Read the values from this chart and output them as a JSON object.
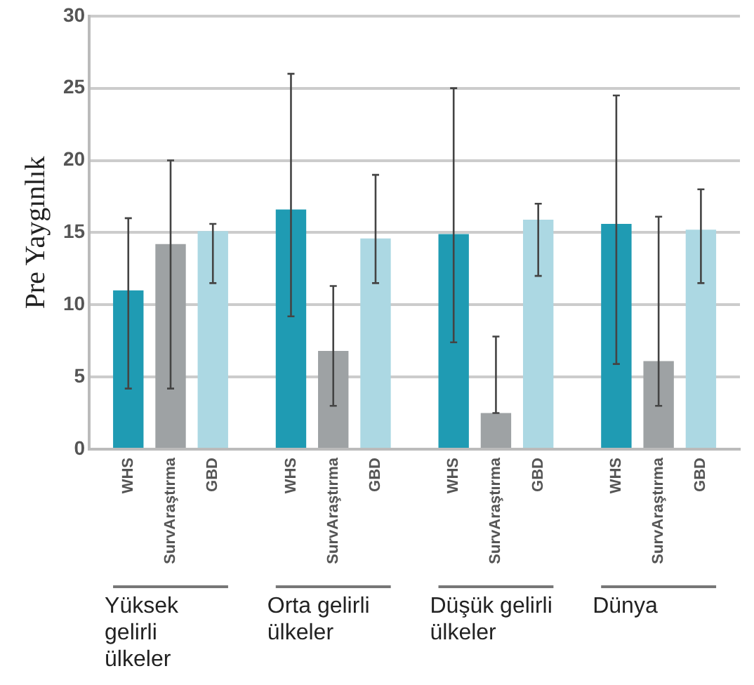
{
  "chart_data": {
    "type": "bar",
    "ylabel": "Pre Yaygınlık",
    "categories": [
      "Yüksek gelirli ülkeler",
      "Orta gelirli ülkeler",
      "Düşük gelirli ülkeler",
      "Dünya"
    ],
    "series": [
      {
        "name": "WHS",
        "color": "#1f9bb3",
        "values": [
          11.0,
          16.6,
          14.9,
          15.6
        ],
        "errors": [
          [
            4.2,
            16.0
          ],
          [
            9.2,
            26.0
          ],
          [
            7.4,
            25.0
          ],
          [
            5.9,
            24.5
          ]
        ]
      },
      {
        "name": "SurvAraştırma",
        "color": "#9ea2a4",
        "values": [
          14.2,
          6.8,
          2.5,
          6.1
        ],
        "errors": [
          [
            4.2,
            20.0
          ],
          [
            3.0,
            11.3
          ],
          [
            2.5,
            7.8
          ],
          [
            3.0,
            16.1
          ]
        ]
      },
      {
        "name": "GBD",
        "color": "#acd8e3",
        "values": [
          15.1,
          14.6,
          15.9,
          15.2
        ],
        "errors": [
          [
            11.5,
            15.6
          ],
          [
            11.5,
            19.0
          ],
          [
            12.0,
            17.0
          ],
          [
            11.5,
            18.0
          ]
        ]
      }
    ],
    "ylim": [
      0,
      30
    ],
    "yticks": [
      0,
      5,
      10,
      15,
      20,
      25,
      30
    ],
    "grid": "y",
    "legend": false
  }
}
